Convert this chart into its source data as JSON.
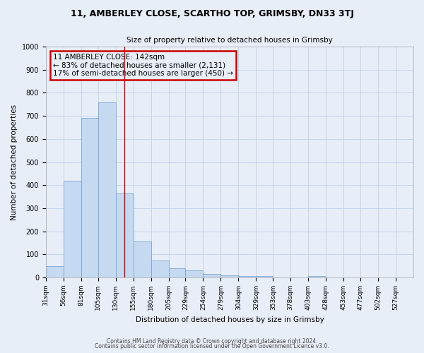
{
  "title": "11, AMBERLEY CLOSE, SCARTHO TOP, GRIMSBY, DN33 3TJ",
  "subtitle": "Size of property relative to detached houses in Grimsby",
  "xlabel": "Distribution of detached houses by size in Grimsby",
  "ylabel": "Number of detached properties",
  "bar_values": [
    50,
    420,
    690,
    760,
    365,
    155,
    75,
    40,
    30,
    15,
    10,
    5,
    5,
    0,
    0,
    5,
    0,
    0,
    0,
    0,
    0
  ],
  "bin_labels": [
    "31sqm",
    "56sqm",
    "81sqm",
    "105sqm",
    "130sqm",
    "155sqm",
    "180sqm",
    "205sqm",
    "229sqm",
    "254sqm",
    "279sqm",
    "304sqm",
    "329sqm",
    "353sqm",
    "378sqm",
    "403sqm",
    "428sqm",
    "453sqm",
    "477sqm",
    "502sqm",
    "527sqm"
  ],
  "bin_edges": [
    31,
    56,
    81,
    105,
    130,
    155,
    180,
    205,
    229,
    254,
    279,
    304,
    329,
    353,
    378,
    403,
    428,
    453,
    477,
    502,
    527,
    552
  ],
  "bar_color": "#c5d9f1",
  "bar_edge_color": "#7ba7d4",
  "vline_x": 142,
  "vline_color": "#cc0000",
  "ylim": [
    0,
    1000
  ],
  "yticks": [
    0,
    100,
    200,
    300,
    400,
    500,
    600,
    700,
    800,
    900,
    1000
  ],
  "annotation_title": "11 AMBERLEY CLOSE: 142sqm",
  "annotation_line1": "← 83% of detached houses are smaller (2,131)",
  "annotation_line2": "17% of semi-detached houses are larger (450) →",
  "annotation_box_color": "#cc0000",
  "footer1": "Contains HM Land Registry data © Crown copyright and database right 2024.",
  "footer2": "Contains public sector information licensed under the Open Government Licence v3.0.",
  "bg_color": "#e8eef8",
  "grid_color": "#c0cfe8"
}
